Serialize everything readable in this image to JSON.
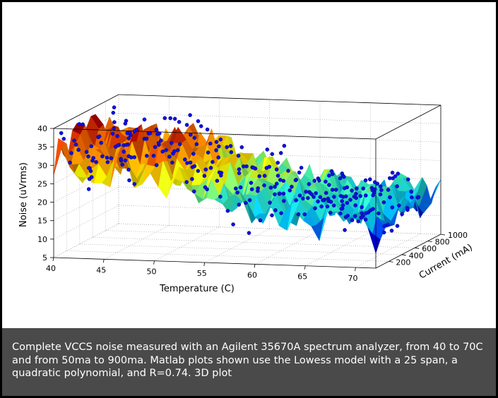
{
  "caption": "Complete VCCS noise measured with an Agilent 35670A spectrum analyzer, from 40 to 70C and from 50ma to 900ma. Matlab plots shown use the Lowess model with a 25 span, a quadratic polynomial, and R=0.74. 3D plot",
  "colors": {
    "background": "#000000",
    "plot_background": "#ffffff",
    "caption_background": "#4a4a4a",
    "points": "#1010e0",
    "colormap": [
      "#00008f",
      "#0000ff",
      "#00c8ff",
      "#40ffbf",
      "#ffff00",
      "#ff8000",
      "#b00000"
    ]
  },
  "chart_data": {
    "type": "surface3d",
    "title": "",
    "xlabel": "Temperature (C)",
    "ylabel": "Current (mA)",
    "zlabel": "Noise (uVrms)",
    "xlim": [
      40,
      72
    ],
    "ylim": [
      0,
      1000
    ],
    "zlim": [
      5,
      40
    ],
    "x_ticks": [
      "40",
      "45",
      "50",
      "55",
      "60",
      "65",
      "70"
    ],
    "y_ticks": [
      "200",
      "400",
      "600",
      "800",
      "1000"
    ],
    "z_ticks": [
      "5",
      "10",
      "15",
      "20",
      "25",
      "30",
      "35",
      "40"
    ],
    "grid": true,
    "colormap": "jet",
    "fit": "Lowess, span 25, quadratic polynomial, R=0.74",
    "noise_trend_by_temperature": {
      "x": [
        40,
        42,
        44,
        46,
        48,
        50,
        52,
        54,
        56,
        58,
        60,
        62,
        64,
        66,
        68,
        70,
        72
      ],
      "mean_noise": [
        34,
        32,
        31,
        33,
        31,
        33,
        29,
        27,
        24,
        24,
        22,
        21,
        21,
        20,
        21,
        20,
        18
      ]
    }
  }
}
